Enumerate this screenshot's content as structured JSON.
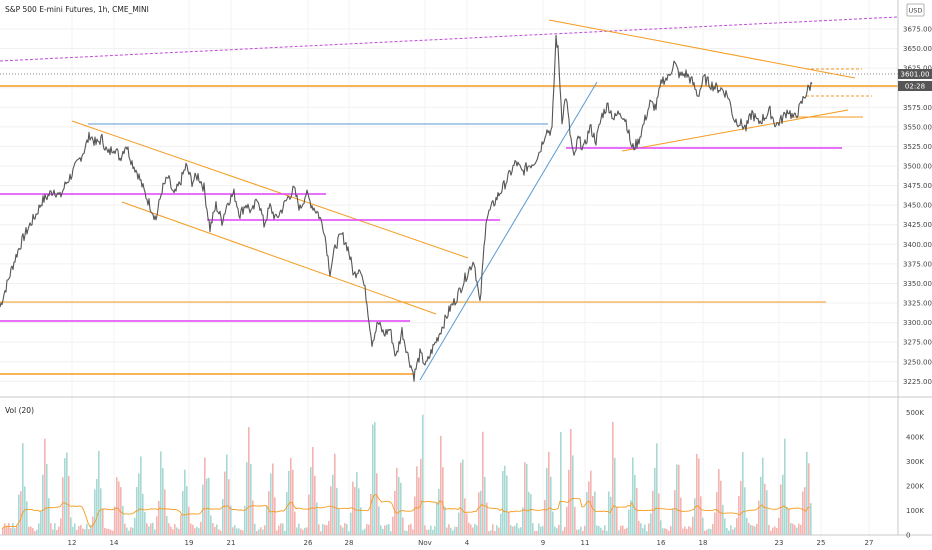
{
  "chart_data": {
    "type": "candlestick",
    "title": "S&P 500 E-mini Futures, 1h, CME_MINI",
    "currency": "USD",
    "price_axis": {
      "min": 3205,
      "max": 3712,
      "ticks": [
        "3225.00",
        "3250.00",
        "3275.00",
        "3300.00",
        "3325.00",
        "3350.00",
        "3375.00",
        "3400.00",
        "3425.00",
        "3450.00",
        "3475.00",
        "3500.00",
        "3525.00",
        "3550.00",
        "3575.00",
        "3600.00",
        "3625.00",
        "3650.00",
        "3675.00"
      ]
    },
    "last_price": "3601.00",
    "countdown": "02:28",
    "x_labels": [
      "12",
      "14",
      "19",
      "21",
      "26",
      "28",
      "Nov",
      "4",
      "9",
      "11",
      "16",
      "18",
      "23",
      "25",
      "27"
    ],
    "colors": {
      "up": "#26a69a",
      "down": "#ef5350",
      "price_line": "#555555",
      "orange": "#f59b1e",
      "magenta": "#e040fb",
      "blue": "#5a9bd5",
      "purple_dash": "#c04bd8"
    },
    "price_path": [
      [
        0,
        3320
      ],
      [
        6,
        3345
      ],
      [
        12,
        3370
      ],
      [
        18,
        3392
      ],
      [
        24,
        3410
      ],
      [
        30,
        3425
      ],
      [
        36,
        3438
      ],
      [
        42,
        3455
      ],
      [
        48,
        3462
      ],
      [
        54,
        3470
      ],
      [
        60,
        3460
      ],
      [
        66,
        3478
      ],
      [
        72,
        3490
      ],
      [
        78,
        3505
      ],
      [
        84,
        3520
      ],
      [
        90,
        3540
      ],
      [
        96,
        3528
      ],
      [
        102,
        3535
      ],
      [
        108,
        3515
      ],
      [
        114,
        3525
      ],
      [
        120,
        3510
      ],
      [
        126,
        3528
      ],
      [
        132,
        3505
      ],
      [
        138,
        3490
      ],
      [
        144,
        3468
      ],
      [
        150,
        3450
      ],
      [
        156,
        3432
      ],
      [
        162,
        3470
      ],
      [
        168,
        3485
      ],
      [
        174,
        3462
      ],
      [
        180,
        3478
      ],
      [
        186,
        3500
      ],
      [
        192,
        3480
      ],
      [
        198,
        3488
      ],
      [
        204,
        3472
      ],
      [
        210,
        3420
      ],
      [
        216,
        3450
      ],
      [
        222,
        3430
      ],
      [
        228,
        3455
      ],
      [
        234,
        3465
      ],
      [
        240,
        3438
      ],
      [
        246,
        3452
      ],
      [
        252,
        3440
      ],
      [
        258,
        3460
      ],
      [
        264,
        3425
      ],
      [
        270,
        3448
      ],
      [
        276,
        3432
      ],
      [
        282,
        3445
      ],
      [
        288,
        3460
      ],
      [
        294,
        3470
      ],
      [
        300,
        3445
      ],
      [
        306,
        3465
      ],
      [
        312,
        3450
      ],
      [
        318,
        3440
      ],
      [
        324,
        3420
      ],
      [
        330,
        3365
      ],
      [
        336,
        3400
      ],
      [
        342,
        3412
      ],
      [
        348,
        3395
      ],
      [
        354,
        3360
      ],
      [
        360,
        3372
      ],
      [
        366,
        3335
      ],
      [
        372,
        3275
      ],
      [
        378,
        3300
      ],
      [
        384,
        3285
      ],
      [
        390,
        3292
      ],
      [
        396,
        3255
      ],
      [
        402,
        3290
      ],
      [
        408,
        3258
      ],
      [
        414,
        3232
      ],
      [
        420,
        3260
      ],
      [
        426,
        3245
      ],
      [
        432,
        3265
      ],
      [
        438,
        3282
      ],
      [
        444,
        3300
      ],
      [
        450,
        3318
      ],
      [
        456,
        3330
      ],
      [
        462,
        3348
      ],
      [
        468,
        3365
      ],
      [
        474,
        3380
      ],
      [
        480,
        3322
      ],
      [
        486,
        3432
      ],
      [
        492,
        3448
      ],
      [
        498,
        3462
      ],
      [
        504,
        3475
      ],
      [
        510,
        3490
      ],
      [
        516,
        3505
      ],
      [
        522,
        3492
      ],
      [
        528,
        3500
      ],
      [
        534,
        3505
      ],
      [
        540,
        3520
      ],
      [
        546,
        3545
      ],
      [
        552,
        3545
      ],
      [
        556,
        3665
      ],
      [
        558,
        3648
      ],
      [
        562,
        3560
      ],
      [
        566,
        3590
      ],
      [
        570,
        3542
      ],
      [
        574,
        3508
      ],
      [
        578,
        3535
      ],
      [
        584,
        3522
      ],
      [
        590,
        3550
      ],
      [
        596,
        3532
      ],
      [
        602,
        3565
      ],
      [
        608,
        3578
      ],
      [
        614,
        3560
      ],
      [
        620,
        3570
      ],
      [
        626,
        3558
      ],
      [
        632,
        3522
      ],
      [
        638,
        3530
      ],
      [
        644,
        3555
      ],
      [
        650,
        3580
      ],
      [
        656,
        3575
      ],
      [
        662,
        3610
      ],
      [
        668,
        3612
      ],
      [
        674,
        3632
      ],
      [
        680,
        3615
      ],
      [
        686,
        3618
      ],
      [
        692,
        3608
      ],
      [
        698,
        3590
      ],
      [
        704,
        3612
      ],
      [
        710,
        3605
      ],
      [
        716,
        3600
      ],
      [
        722,
        3598
      ],
      [
        728,
        3590
      ],
      [
        734,
        3560
      ],
      [
        740,
        3555
      ],
      [
        746,
        3548
      ],
      [
        752,
        3568
      ],
      [
        758,
        3555
      ],
      [
        764,
        3562
      ],
      [
        770,
        3570
      ],
      [
        776,
        3552
      ],
      [
        782,
        3560
      ],
      [
        788,
        3572
      ],
      [
        794,
        3560
      ],
      [
        800,
        3575
      ],
      [
        804,
        3588
      ],
      [
        808,
        3598
      ],
      [
        812,
        3605
      ]
    ],
    "volume": {
      "label": "Vol (20)",
      "max": 550000,
      "ticks": [
        "0",
        "100K",
        "200K",
        "300K",
        "400K",
        "500K"
      ]
    }
  }
}
